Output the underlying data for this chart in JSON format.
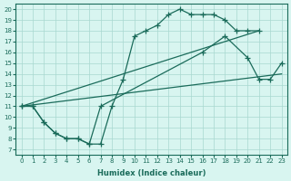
{
  "xlabel": "Humidex (Indice chaleur)",
  "bg_color": "#d8f5f0",
  "grid_color": "#a8d8d0",
  "line_color": "#1a6b5a",
  "xlim": [
    -0.5,
    23.5
  ],
  "ylim": [
    6.5,
    20.5
  ],
  "xticks": [
    0,
    1,
    2,
    3,
    4,
    5,
    6,
    7,
    8,
    9,
    10,
    11,
    12,
    13,
    14,
    15,
    16,
    17,
    18,
    19,
    20,
    21,
    22,
    23
  ],
  "yticks": [
    7,
    8,
    9,
    10,
    11,
    12,
    13,
    14,
    15,
    16,
    17,
    18,
    19,
    20
  ],
  "curve1_x": [
    0,
    1,
    2,
    3,
    4,
    5,
    6,
    7,
    8,
    9,
    10,
    11,
    12,
    13,
    14,
    15,
    16,
    17,
    18,
    19,
    20,
    21
  ],
  "curve1_y": [
    11,
    11,
    9.5,
    8.5,
    8,
    8,
    7.5,
    7.5,
    11,
    13.5,
    17.5,
    18,
    18.5,
    19.5,
    20,
    19.5,
    19.5,
    19.5,
    19,
    18,
    18,
    18
  ],
  "curve2_x": [
    0,
    1,
    2,
    3,
    4,
    5,
    6,
    7,
    16,
    18,
    20,
    21,
    22,
    23
  ],
  "curve2_y": [
    11,
    11,
    9.5,
    8.5,
    8,
    8,
    7.5,
    11,
    16,
    17.5,
    15.5,
    13.5,
    13.5,
    15
  ],
  "line_straight1": [
    0,
    11,
    23,
    14
  ],
  "line_straight2": [
    0,
    11,
    21,
    18
  ]
}
